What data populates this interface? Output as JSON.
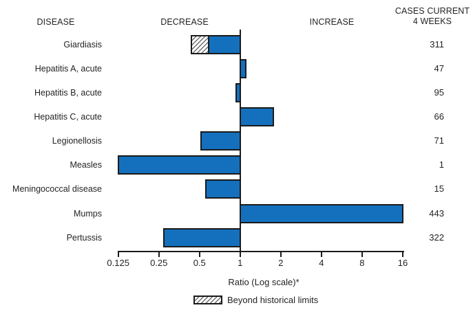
{
  "header": {
    "disease": "DISEASE",
    "decrease": "DECREASE",
    "increase": "INCREASE",
    "cases_line1": "CASES CURRENT",
    "cases_line2": "4 WEEKS"
  },
  "chart_data": {
    "type": "bar",
    "orientation": "horizontal",
    "scale": "log2",
    "axis_center_value": 1,
    "xlim": [
      0.125,
      16
    ],
    "x_tick_labels": [
      "0.125",
      "0.25",
      "0.5",
      "1",
      "2",
      "4",
      "8",
      "16"
    ],
    "xlabel": "Ratio (Log scale)*",
    "columns": [
      "DISEASE",
      "Ratio",
      "CASES CURRENT 4 WEEKS"
    ],
    "rows": [
      {
        "disease": "Giardiasis",
        "ratio": 0.43,
        "beyond_limit_to": 0.59,
        "cases": 311
      },
      {
        "disease": "Hepatitis A, acute",
        "ratio": 1.11,
        "cases": 47
      },
      {
        "disease": "Hepatitis B, acute",
        "ratio": 0.92,
        "cases": 95
      },
      {
        "disease": "Hepatitis C, acute",
        "ratio": 1.78,
        "cases": 66
      },
      {
        "disease": "Legionellosis",
        "ratio": 0.51,
        "cases": 71
      },
      {
        "disease": "Measles",
        "ratio": 0.124,
        "cases": 1
      },
      {
        "disease": "Meningococcal disease",
        "ratio": 0.55,
        "cases": 15
      },
      {
        "disease": "Mumps",
        "ratio": 16.2,
        "cases": 443
      },
      {
        "disease": "Pertussis",
        "ratio": 0.27,
        "cases": 322
      }
    ],
    "legend": {
      "label": "Beyond historical limits",
      "style": "hatched",
      "position": "bottom"
    },
    "colors": {
      "bar_fill": "#1470bd",
      "bar_border": "#1a1a1a",
      "text": "#231f20",
      "hatch_line": "#6e6e6e"
    },
    "grid": false
  }
}
